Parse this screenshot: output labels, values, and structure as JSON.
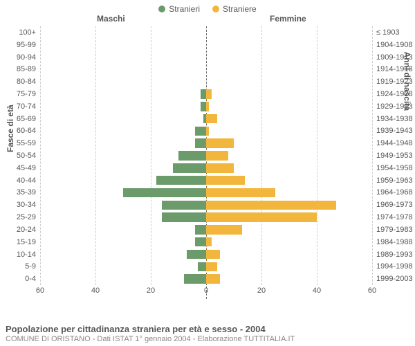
{
  "legend": {
    "male": {
      "label": "Stranieri",
      "color": "#6b9a6b"
    },
    "female": {
      "label": "Straniere",
      "color": "#f2b63c"
    }
  },
  "headers": {
    "male": "Maschi",
    "female": "Femmine"
  },
  "axis_titles": {
    "left": "Fasce di età",
    "right": "Anni di nascita"
  },
  "chart": {
    "type": "population-pyramid",
    "xmax": 60,
    "xticks_left": [
      60,
      40,
      20,
      0
    ],
    "xticks_right": [
      20,
      40,
      60
    ],
    "grid_color": "#cccccc",
    "center_color": "#666666",
    "background": "#ffffff",
    "bar_color_male": "#6b9a6b",
    "bar_color_female": "#f2b63c",
    "label_fontsize": 11,
    "title_fontsize": 13,
    "rows": [
      {
        "age": "100+",
        "birth": "≤ 1903",
        "m": 0,
        "f": 0
      },
      {
        "age": "95-99",
        "birth": "1904-1908",
        "m": 0,
        "f": 0
      },
      {
        "age": "90-94",
        "birth": "1909-1913",
        "m": 0,
        "f": 0
      },
      {
        "age": "85-89",
        "birth": "1914-1918",
        "m": 0,
        "f": 0
      },
      {
        "age": "80-84",
        "birth": "1919-1923",
        "m": 0,
        "f": 0
      },
      {
        "age": "75-79",
        "birth": "1924-1928",
        "m": 2,
        "f": 2
      },
      {
        "age": "70-74",
        "birth": "1929-1933",
        "m": 2,
        "f": 1
      },
      {
        "age": "65-69",
        "birth": "1934-1938",
        "m": 1,
        "f": 4
      },
      {
        "age": "60-64",
        "birth": "1939-1943",
        "m": 4,
        "f": 1
      },
      {
        "age": "55-59",
        "birth": "1944-1948",
        "m": 4,
        "f": 10
      },
      {
        "age": "50-54",
        "birth": "1949-1953",
        "m": 10,
        "f": 8
      },
      {
        "age": "45-49",
        "birth": "1954-1958",
        "m": 12,
        "f": 10
      },
      {
        "age": "40-44",
        "birth": "1959-1963",
        "m": 18,
        "f": 14
      },
      {
        "age": "35-39",
        "birth": "1964-1968",
        "m": 30,
        "f": 25
      },
      {
        "age": "30-34",
        "birth": "1969-1973",
        "m": 16,
        "f": 47
      },
      {
        "age": "25-29",
        "birth": "1974-1978",
        "m": 16,
        "f": 40
      },
      {
        "age": "20-24",
        "birth": "1979-1983",
        "m": 4,
        "f": 13
      },
      {
        "age": "15-19",
        "birth": "1984-1988",
        "m": 4,
        "f": 2
      },
      {
        "age": "10-14",
        "birth": "1989-1993",
        "m": 7,
        "f": 5
      },
      {
        "age": "5-9",
        "birth": "1994-1998",
        "m": 3,
        "f": 4
      },
      {
        "age": "0-4",
        "birth": "1999-2003",
        "m": 8,
        "f": 5
      }
    ]
  },
  "footer": {
    "title": "Popolazione per cittadinanza straniera per età e sesso - 2004",
    "subtitle": "COMUNE DI ORISTANO - Dati ISTAT 1° gennaio 2004 - Elaborazione TUTTITALIA.IT"
  }
}
